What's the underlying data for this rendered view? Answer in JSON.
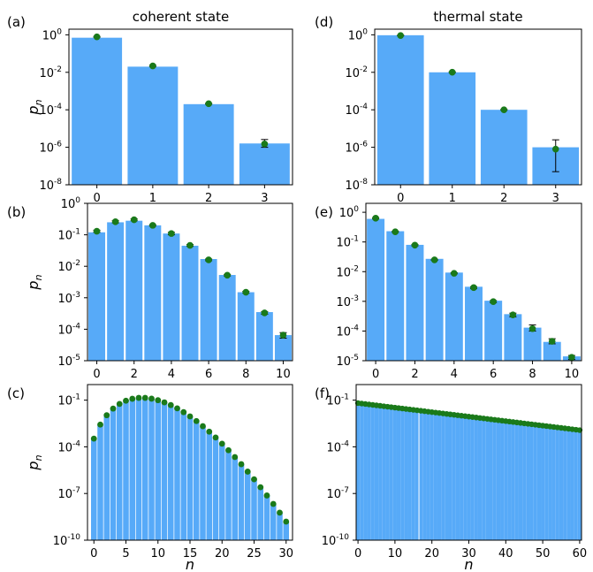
{
  "colors": {
    "bar": "#57aaf8",
    "point": "#1a7a1a",
    "errorbar": "#000000"
  },
  "chart_data": [
    {
      "panel": "(a)",
      "type": "bar",
      "title": "coherent state",
      "ylabel": "p",
      "ylabel_sub": "n",
      "xlabel": "",
      "yscale": "log",
      "ylim": [
        1e-08,
        2.0
      ],
      "yticks": [
        {
          "exp": "0"
        },
        {
          "exp": "-2"
        },
        {
          "exp": "-4"
        },
        {
          "exp": "-6"
        },
        {
          "exp": "-8"
        }
      ],
      "yticks_value": [
        1,
        0.01,
        0.0001,
        1e-06,
        1e-08
      ],
      "xlim": [
        -0.5,
        3.5
      ],
      "xticks": [
        "0",
        "1",
        "2",
        "3"
      ],
      "categories": [
        0,
        1,
        2,
        3
      ],
      "values": [
        0.7,
        0.02,
        0.0002,
        1.6e-06
      ],
      "points": [
        0.78,
        0.022,
        0.00021,
        1.5e-06
      ],
      "err_low": [
        0.74,
        0.02,
        0.0002,
        1e-06
      ],
      "err_high": [
        0.82,
        0.024,
        0.00022,
        2.6e-06
      ]
    },
    {
      "panel": "(d)",
      "type": "bar",
      "title": "thermal state",
      "ylabel": "",
      "xlabel": "",
      "yscale": "log",
      "ylim": [
        1e-08,
        2.0
      ],
      "yticks": [
        {
          "exp": "0"
        },
        {
          "exp": "-2"
        },
        {
          "exp": "-4"
        },
        {
          "exp": "-6"
        },
        {
          "exp": "-8"
        }
      ],
      "yticks_value": [
        1,
        0.01,
        0.0001,
        1e-06,
        1e-08
      ],
      "xlim": [
        -0.5,
        3.5
      ],
      "xticks": [
        "0",
        "1",
        "2",
        "3"
      ],
      "categories": [
        0,
        1,
        2,
        3
      ],
      "values": [
        0.95,
        0.01,
        0.0001,
        1e-06
      ],
      "points": [
        0.92,
        0.0101,
        0.0001,
        8e-07
      ],
      "err_low": [
        0.88,
        0.0095,
        9.5e-05,
        5e-08
      ],
      "err_high": [
        0.96,
        0.0107,
        0.000105,
        2.5e-06
      ]
    },
    {
      "panel": "(b)",
      "type": "bar",
      "title": "",
      "ylabel": "p",
      "ylabel_sub": "n",
      "xlabel": "",
      "yscale": "log",
      "ylim": [
        1e-05,
        1.0
      ],
      "yticks": [
        {
          "exp": "0"
        },
        {
          "exp": "-1"
        },
        {
          "exp": "-2"
        },
        {
          "exp": "-3"
        },
        {
          "exp": "-4"
        },
        {
          "exp": "-5"
        }
      ],
      "yticks_value": [
        1,
        0.1,
        0.01,
        0.001,
        0.0001,
        1e-05
      ],
      "xlim": [
        -0.5,
        10.5
      ],
      "xticks": [
        "0",
        "2",
        "4",
        "6",
        "8",
        "10"
      ],
      "categories": [
        0,
        1,
        2,
        3,
        4,
        5,
        6,
        7,
        8,
        9,
        10
      ],
      "values": [
        0.12,
        0.25,
        0.28,
        0.2,
        0.11,
        0.045,
        0.017,
        0.0053,
        0.0015,
        0.00035,
        6.5e-05
      ],
      "points": [
        0.13,
        0.26,
        0.3,
        0.2,
        0.11,
        0.046,
        0.016,
        0.0052,
        0.0015,
        0.00033,
        6.5e-05
      ],
      "err_low": [
        0.12,
        0.24,
        0.28,
        0.19,
        0.1,
        0.043,
        0.015,
        0.0049,
        0.0014,
        0.0003,
        5.2e-05
      ],
      "err_high": [
        0.14,
        0.28,
        0.32,
        0.21,
        0.12,
        0.049,
        0.017,
        0.0055,
        0.0016,
        0.00036,
        7.8e-05
      ]
    },
    {
      "panel": "(e)",
      "type": "bar",
      "title": "",
      "ylabel": "",
      "xlabel": "",
      "yscale": "log",
      "ylim": [
        1e-05,
        2.0
      ],
      "yticks": [
        {
          "exp": "0"
        },
        {
          "exp": "-1"
        },
        {
          "exp": "-2"
        },
        {
          "exp": "-3"
        },
        {
          "exp": "-4"
        },
        {
          "exp": "-5"
        }
      ],
      "yticks_value": [
        1,
        0.1,
        0.01,
        0.001,
        0.0001,
        1e-05
      ],
      "xlim": [
        -0.5,
        10.5
      ],
      "xticks": [
        "0",
        "2",
        "4",
        "6",
        "8",
        "10"
      ],
      "categories": [
        0,
        1,
        2,
        3,
        4,
        5,
        6,
        7,
        8,
        9,
        10
      ],
      "values": [
        0.6,
        0.23,
        0.08,
        0.027,
        0.0093,
        0.0031,
        0.00105,
        0.00037,
        0.00013,
        4.3e-05,
        1.4e-05
      ],
      "points": [
        0.63,
        0.22,
        0.078,
        0.025,
        0.0088,
        0.0029,
        0.00098,
        0.00035,
        0.00012,
        4.5e-05,
        1.3e-05
      ],
      "err_low": [
        0.6,
        0.21,
        0.074,
        0.024,
        0.0084,
        0.0027,
        0.0009,
        0.0003,
        0.0001,
        3.7e-05,
        1.1e-05
      ],
      "err_high": [
        0.66,
        0.23,
        0.082,
        0.026,
        0.0092,
        0.0031,
        0.00106,
        0.0004,
        0.00016,
        5.5e-05,
        1.5e-05
      ]
    },
    {
      "panel": "(c)",
      "type": "bar",
      "title": "",
      "ylabel": "p",
      "ylabel_sub": "n",
      "xlabel": "n",
      "yscale": "log",
      "ylim": [
        1e-10,
        1.0
      ],
      "yticks": [
        {
          "exp": "-1"
        },
        {
          "exp": "-4"
        },
        {
          "exp": "-7"
        },
        {
          "exp": "-10"
        }
      ],
      "yticks_value": [
        0.1,
        0.0001,
        1e-07,
        1e-10
      ],
      "xlim": [
        -1,
        31
      ],
      "xticks": [
        "0",
        "5",
        "10",
        "15",
        "20",
        "25",
        "30"
      ],
      "mean_photon_number": 8,
      "values": "poisson",
      "points": "poisson"
    },
    {
      "panel": "(f)",
      "type": "bar",
      "title": "",
      "ylabel": "",
      "xlabel": "n",
      "yscale": "log",
      "ylim": [
        1e-10,
        1.0
      ],
      "yticks": [
        {
          "exp": "-1"
        },
        {
          "exp": "-4"
        },
        {
          "exp": "-7"
        },
        {
          "exp": "-10"
        }
      ],
      "yticks_value": [
        0.1,
        0.0001,
        1e-07,
        1e-10
      ],
      "xlim": [
        -0.5,
        60.5
      ],
      "xticks": [
        "0",
        "10",
        "20",
        "30",
        "40",
        "50",
        "60"
      ],
      "mean_photon_number": 14.5,
      "values": "thermal",
      "points": "thermal"
    }
  ]
}
